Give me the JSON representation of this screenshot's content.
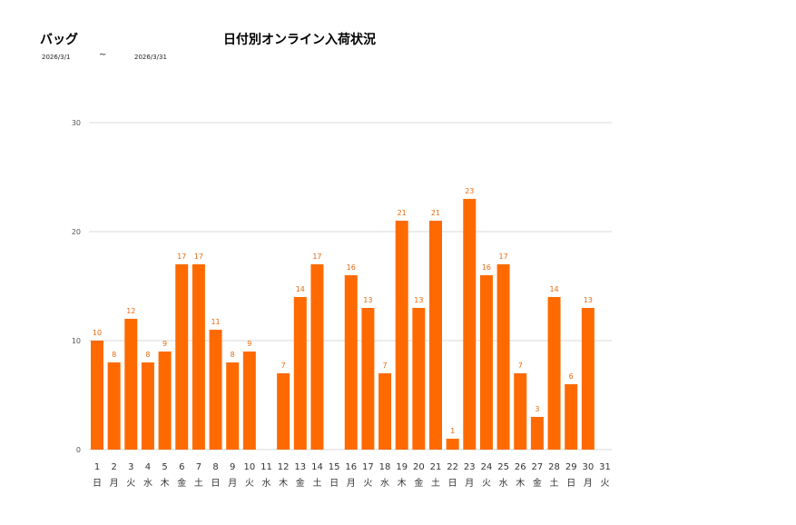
{
  "header": {
    "category": "バッグ",
    "title": "日付別オンライン入荷状況",
    "date_from": "2026/3/1",
    "range_separator": "~",
    "date_to": "2026/3/31"
  },
  "chart_data": {
    "type": "bar",
    "title": "日付別オンライン入荷状況",
    "xlabel": "",
    "ylabel": "",
    "ylim": [
      0,
      30
    ],
    "yticks": [
      0,
      10,
      20,
      30
    ],
    "grid": true,
    "bar_color": "#ff6a00",
    "label_color": "#e86a10",
    "grid_color": "#d9d9d9",
    "categories": [
      "1",
      "2",
      "3",
      "4",
      "5",
      "6",
      "7",
      "8",
      "9",
      "10",
      "11",
      "12",
      "13",
      "14",
      "15",
      "16",
      "17",
      "18",
      "19",
      "20",
      "21",
      "22",
      "23",
      "24",
      "25",
      "26",
      "27",
      "28",
      "29",
      "30",
      "31"
    ],
    "weekdays": [
      "日",
      "月",
      "火",
      "水",
      "木",
      "金",
      "土",
      "日",
      "月",
      "火",
      "水",
      "木",
      "金",
      "土",
      "日",
      "月",
      "火",
      "水",
      "木",
      "金",
      "土",
      "日",
      "月",
      "火",
      "水",
      "木",
      "金",
      "土",
      "日",
      "月",
      "火"
    ],
    "values": [
      10,
      8,
      12,
      8,
      9,
      17,
      17,
      11,
      8,
      9,
      0,
      7,
      14,
      17,
      0,
      16,
      13,
      7,
      21,
      13,
      21,
      1,
      23,
      16,
      17,
      7,
      3,
      14,
      6,
      13,
      0
    ]
  }
}
